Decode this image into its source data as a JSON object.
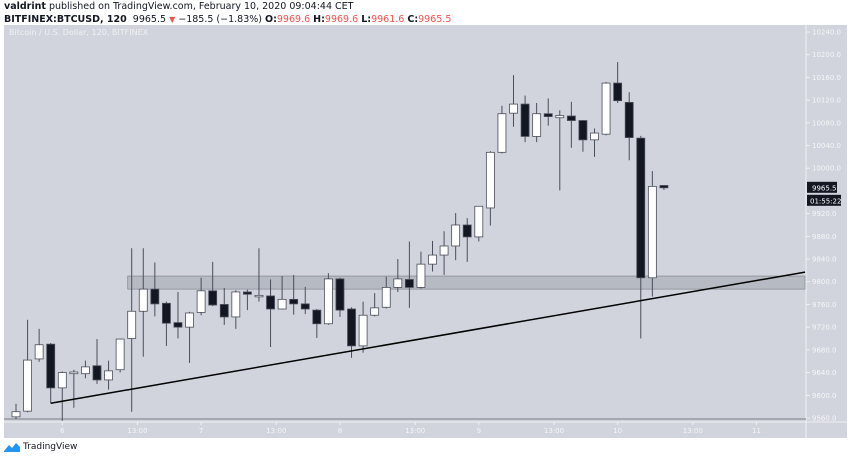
{
  "header": {
    "author": "valdrint",
    "published": "published on TradingView.com, February 10, 2020 09:04:44 CET",
    "symbol": "BITFINEX:BTCUSD, 120",
    "last": "9965.5",
    "change": "−185.5 (−1.83%)",
    "o_label": "O:",
    "o": "9969.6",
    "h_label": "H:",
    "h": "9969.6",
    "l_label": "L:",
    "l": "9961.6",
    "c_label": "C:",
    "c": "9965.5",
    "direction_icon": "triangle-down-icon"
  },
  "chart": {
    "title": "Bitcoin / U.S. Dollar, 120, BITFINEX",
    "colors": {
      "background": "#d1d4dc",
      "up": "#ffffff",
      "down": "#131722",
      "wick": "#4a4e5a",
      "zone": "#b2b5be",
      "trendline": "#000000"
    },
    "current_price_label": "9965.5",
    "countdown": "01:55:22",
    "price_ticks": [
      "10240.0",
      "10200.0",
      "10160.0",
      "10120.0",
      "10080.0",
      "10040.0",
      "10000.0",
      "9920.0",
      "9880.0",
      "9840.0",
      "9800.0",
      "9760.0",
      "9720.0",
      "9680.0",
      "9640.0",
      "9600.0",
      "9560.0"
    ],
    "time_ticks": [
      {
        "label": "6",
        "candle": 4
      },
      {
        "label": "13:00",
        "candle": 10.5
      },
      {
        "label": "7",
        "candle": 16
      },
      {
        "label": "13:00",
        "candle": 22.5
      },
      {
        "label": "8",
        "candle": 28
      },
      {
        "label": "13:00",
        "candle": 34.5
      },
      {
        "label": "9",
        "candle": 40
      },
      {
        "label": "13:00",
        "candle": 46.5
      },
      {
        "label": "10",
        "candle": 52
      },
      {
        "label": "13:00",
        "candle": 58.5
      },
      {
        "label": "11",
        "candle": 64
      }
    ],
    "support_zone": {
      "from_candle": 10,
      "low": 9787,
      "high": 9810
    },
    "trendline": {
      "start": {
        "candle": 3,
        "price": 9586
      },
      "end": {
        "candle": 68.2,
        "price": 9817
      }
    },
    "candles": [
      [
        9562,
        9585,
        9558,
        9571
      ],
      [
        9572,
        9733,
        9570,
        9662
      ],
      [
        9664,
        9717,
        9659,
        9689
      ],
      [
        9690,
        9692,
        9586,
        9613
      ],
      [
        9613,
        9642,
        9555,
        9640
      ],
      [
        9638,
        9645,
        9578,
        9641
      ],
      [
        9638,
        9661,
        9630,
        9650
      ],
      [
        9652,
        9699,
        9620,
        9627
      ],
      [
        9627,
        9661,
        9610,
        9643
      ],
      [
        9645,
        9700,
        9640,
        9699
      ],
      [
        9700,
        9859,
        9571,
        9748
      ],
      [
        9748,
        9859,
        9668,
        9787
      ],
      [
        9787,
        9834,
        9739,
        9761
      ],
      [
        9762,
        9765,
        9687,
        9727
      ],
      [
        9728,
        9782,
        9700,
        9720
      ],
      [
        9720,
        9747,
        9657,
        9745
      ],
      [
        9746,
        9807,
        9741,
        9784
      ],
      [
        9784,
        9835,
        9757,
        9759
      ],
      [
        9760,
        9789,
        9724,
        9738
      ],
      [
        9738,
        9785,
        9717,
        9782
      ],
      [
        9782,
        9786,
        9750,
        9778
      ],
      [
        9775,
        9859,
        9765,
        9776
      ],
      [
        9775,
        9804,
        9685,
        9752
      ],
      [
        9752,
        9810,
        9751,
        9769
      ],
      [
        9769,
        9812,
        9742,
        9761
      ],
      [
        9761,
        9791,
        9743,
        9752
      ],
      [
        9750,
        9752,
        9701,
        9726
      ],
      [
        9726,
        9815,
        9724,
        9805
      ],
      [
        9805,
        9807,
        9738,
        9750
      ],
      [
        9752,
        9755,
        9666,
        9687
      ],
      [
        9687,
        9765,
        9675,
        9741
      ],
      [
        9741,
        9780,
        9739,
        9754
      ],
      [
        9755,
        9809,
        9753,
        9790
      ],
      [
        9790,
        9840,
        9782,
        9805
      ],
      [
        9804,
        9871,
        9754,
        9790
      ],
      [
        9790,
        9853,
        9788,
        9831
      ],
      [
        9831,
        9872,
        9818,
        9847
      ],
      [
        9847,
        9889,
        9812,
        9863
      ],
      [
        9863,
        9921,
        9838,
        9900
      ],
      [
        9900,
        9912,
        9835,
        9879
      ],
      [
        9879,
        9933,
        9871,
        9933
      ],
      [
        9930,
        10030,
        9899,
        10028
      ],
      [
        10028,
        10110,
        10026,
        10096
      ],
      [
        10097,
        10164,
        10073,
        10113
      ],
      [
        10113,
        10128,
        10046,
        10056
      ],
      [
        10056,
        10115,
        10046,
        10096
      ],
      [
        10096,
        10123,
        10075,
        10091
      ],
      [
        10089,
        10102,
        9961,
        10093
      ],
      [
        10092,
        10117,
        10036,
        10084
      ],
      [
        10084,
        10085,
        10029,
        10050
      ],
      [
        10050,
        10070,
        10020,
        10062
      ],
      [
        10060,
        10152,
        10058,
        10150
      ],
      [
        10150,
        10187,
        10115,
        10119
      ],
      [
        10116,
        10134,
        10014,
        10054
      ],
      [
        10053,
        10057,
        9700,
        9807
      ],
      [
        9807,
        9995,
        9774,
        9968
      ],
      [
        9969.6,
        9969.6,
        9961.6,
        9965.5
      ]
    ]
  },
  "footer": {
    "brand": "TradingView",
    "logo_icon": "tradingview-logo-icon"
  }
}
